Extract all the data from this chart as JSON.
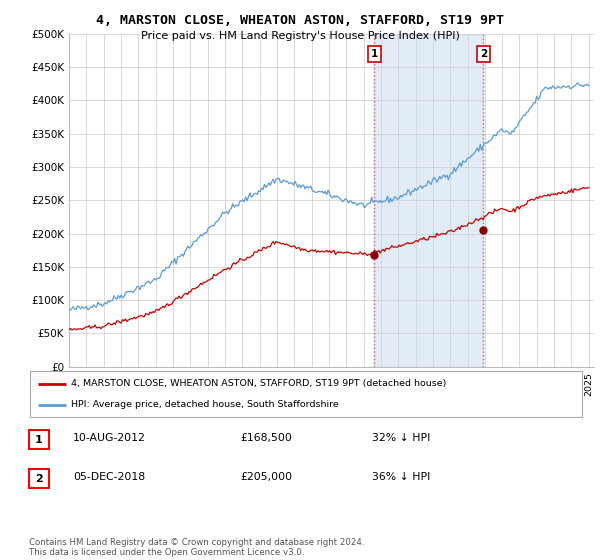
{
  "title": "4, MARSTON CLOSE, WHEATON ASTON, STAFFORD, ST19 9PT",
  "subtitle": "Price paid vs. HM Land Registry's House Price Index (HPI)",
  "ylim": [
    0,
    500000
  ],
  "yticks": [
    0,
    50000,
    100000,
    150000,
    200000,
    250000,
    300000,
    350000,
    400000,
    450000,
    500000
  ],
  "ytick_labels": [
    "£0",
    "£50K",
    "£100K",
    "£150K",
    "£200K",
    "£250K",
    "£300K",
    "£350K",
    "£400K",
    "£450K",
    "£500K"
  ],
  "hpi_color": "#5b9bd5",
  "price_color": "#cc0000",
  "sale1_date_x": 2012.61,
  "sale1_price": 168500,
  "sale2_date_x": 2018.92,
  "sale2_price": 205000,
  "sale1_label": "1",
  "sale2_label": "2",
  "legend_price_label": "4, MARSTON CLOSE, WHEATON ASTON, STAFFORD, ST19 9PT (detached house)",
  "legend_hpi_label": "HPI: Average price, detached house, South Staffordshire",
  "table_row1": [
    "1",
    "10-AUG-2012",
    "£168,500",
    "32% ↓ HPI"
  ],
  "table_row2": [
    "2",
    "05-DEC-2018",
    "£205,000",
    "36% ↓ HPI"
  ],
  "footer": "Contains HM Land Registry data © Crown copyright and database right 2024.\nThis data is licensed under the Open Government Licence v3.0.",
  "background_color": "#ffffff",
  "grid_color": "#cccccc",
  "xlim_start": 1995,
  "xlim_end": 2025.3
}
